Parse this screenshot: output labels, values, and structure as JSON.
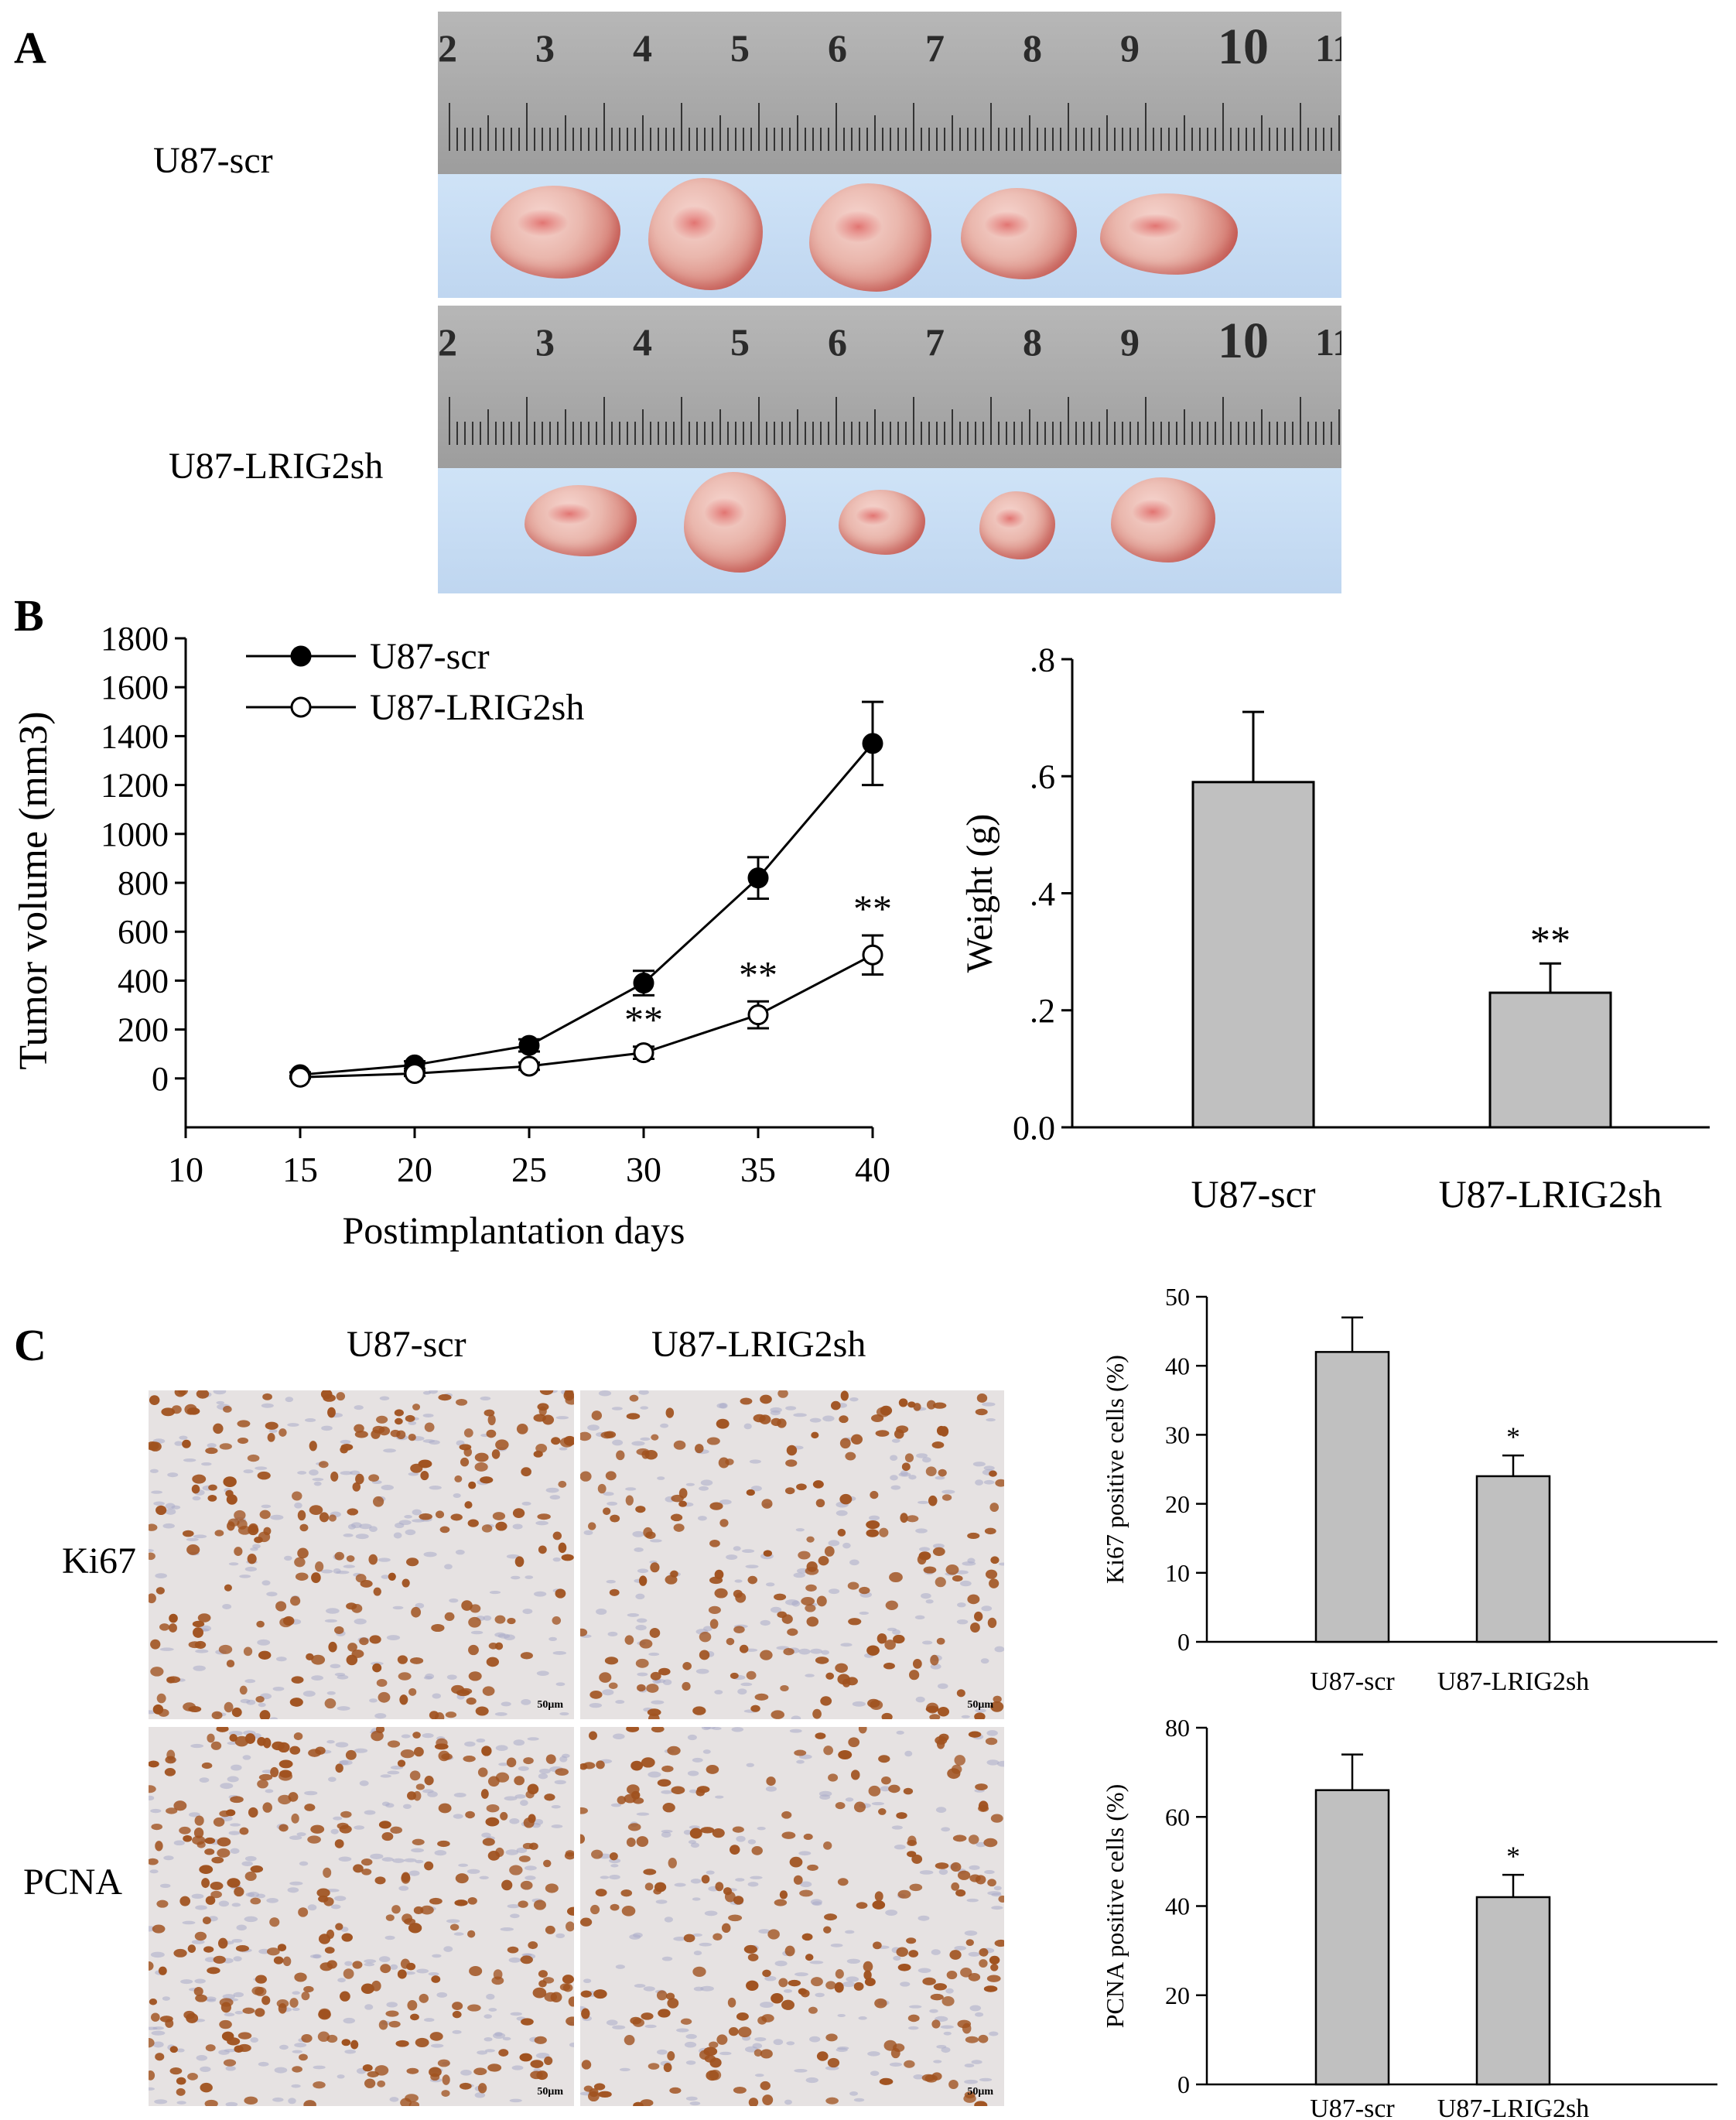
{
  "panels": {
    "a": "A",
    "b": "B",
    "c": "C"
  },
  "panel_a": {
    "row1_label": "U87-scr",
    "row2_label": "U87-LRIG2sh",
    "ruler_numbers": [
      "2",
      "3",
      "4",
      "5",
      "6",
      "7",
      "8",
      "9",
      "10",
      "11"
    ]
  },
  "panel_c": {
    "col1": "U87-scr",
    "col2": "U87-LRIG2sh",
    "row1": "Ki67",
    "row2": "PCNA",
    "scale_label": "50μm"
  },
  "colors": {
    "bar_fill": "#c0c0c0",
    "tumor": "#e8b4aa",
    "tray": "#c4daf2",
    "ruler": "#aaaaaa",
    "stain_brown": "#a0521f",
    "stain_blue": "#a9acc8"
  },
  "chart_data": [
    {
      "type": "line",
      "title": "",
      "xlabel": "Postimplantation days",
      "ylabel": "Tumor volume (mm3)",
      "xlim": [
        10,
        40
      ],
      "ylim": [
        -200,
        1800
      ],
      "x_ticks": [
        "10",
        "15",
        "20",
        "25",
        "30",
        "35",
        "40"
      ],
      "y_ticks": [
        "0",
        "200",
        "400",
        "600",
        "800",
        "1000",
        "1200",
        "1400",
        "1600",
        "1800"
      ],
      "x": [
        15,
        20,
        25,
        30,
        35,
        40
      ],
      "series": [
        {
          "name": "U87-scr",
          "marker": "filled-circle",
          "values": [
            15,
            55,
            135,
            390,
            820,
            1370
          ],
          "errors": [
            10,
            15,
            25,
            50,
            85,
            170
          ]
        },
        {
          "name": "U87-LRIG2sh",
          "marker": "open-circle",
          "values": [
            5,
            20,
            50,
            105,
            260,
            505
          ],
          "errors": [
            5,
            10,
            15,
            25,
            55,
            80
          ]
        }
      ],
      "annotations": [
        {
          "x": 30,
          "text": "**"
        },
        {
          "x": 35,
          "text": "**"
        },
        {
          "x": 40,
          "text": "**"
        }
      ],
      "legend": "top-left",
      "grid": false
    },
    {
      "type": "bar",
      "title": "",
      "xlabel": "",
      "ylabel": "Weight (g)",
      "categories": [
        "U87-scr",
        "U87-LRIG2sh"
      ],
      "values": [
        0.59,
        0.23
      ],
      "errors": [
        0.12,
        0.05
      ],
      "ylim": [
        0,
        0.8
      ],
      "y_ticks": [
        "0.0",
        ".2",
        ".4",
        ".6",
        ".8"
      ],
      "annotations": [
        {
          "category": "U87-LRIG2sh",
          "text": "**"
        }
      ],
      "grid": false
    },
    {
      "type": "bar",
      "title": "",
      "xlabel": "",
      "ylabel": "Ki67 positive cells (%)",
      "categories": [
        "U87-scr",
        "U87-LRIG2sh"
      ],
      "values": [
        42,
        24
      ],
      "errors": [
        5,
        3
      ],
      "ylim": [
        0,
        50
      ],
      "y_ticks": [
        "0",
        "10",
        "20",
        "30",
        "40",
        "50"
      ],
      "annotations": [
        {
          "category": "U87-LRIG2sh",
          "text": "*"
        }
      ],
      "grid": false
    },
    {
      "type": "bar",
      "title": "",
      "xlabel": "",
      "ylabel": "PCNA positive cells (%)",
      "categories": [
        "U87-scr",
        "U87-LRIG2sh"
      ],
      "values": [
        66,
        42
      ],
      "errors": [
        8,
        5
      ],
      "ylim": [
        0,
        80
      ],
      "y_ticks": [
        "0",
        "20",
        "40",
        "60",
        "80"
      ],
      "annotations": [
        {
          "category": "U87-LRIG2sh",
          "text": "*"
        }
      ],
      "grid": false
    }
  ]
}
